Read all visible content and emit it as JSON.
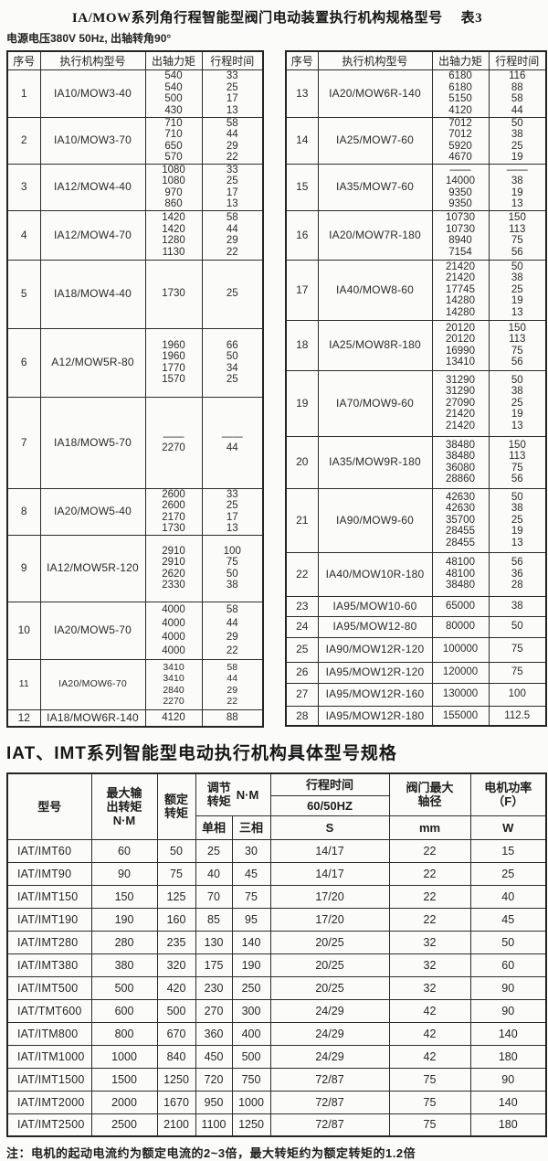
{
  "page": {
    "title": "IA/MOW系列角行程智能型阀门电动装置执行机构规格型号",
    "table_ref": "表3",
    "subtitle": "电源电压380V 50Hz, 出轴转角90°",
    "section2_title": "IAT、IMT系列智能型电动执行机构具体型号规格",
    "note": "注：电机的起动电流约为额定电流的2~3倍，最大转矩约为额定转矩的1.2倍"
  },
  "spec_table": {
    "headers": [
      "序号",
      "执行机构型号",
      "出轴力矩",
      "行程时间"
    ],
    "left_rows": [
      {
        "no": "1",
        "model": "IA10/MOW3-40",
        "torque": "540\n540\n500\n430",
        "time": "33\n25\n17\n13"
      },
      {
        "no": "2",
        "model": "IA10/MOW3-70",
        "torque": "710\n710\n650\n570",
        "time": "58\n44\n29\n22"
      },
      {
        "no": "3",
        "model": "IA12/MOW4-40",
        "torque": "1080\n1080\n970\n860",
        "time": "33\n25\n17\n13"
      },
      {
        "no": "4",
        "model": "IA12/MOW4-70",
        "torque": "1420\n1420\n1280\n1130",
        "time": "58\n44\n29\n22"
      },
      {
        "no": "5",
        "model": "IA18/MOW4-40",
        "torque": "1730",
        "time": "25"
      },
      {
        "no": "6",
        "model": "A12/MOW5R-80",
        "torque": "1960\n1960\n1770\n1570",
        "time": "66\n50\n34\n25"
      },
      {
        "no": "7",
        "model": "IA18/MOW5-70",
        "torque": "——\n2270",
        "time": "——\n44"
      },
      {
        "no": "8",
        "model": "IA20/MOW5-40",
        "torque": "2600\n2600\n2170\n1730",
        "time": "33\n25\n17\n13"
      },
      {
        "no": "9",
        "model": "IA12/MOW5R-120",
        "torque": "2910\n2910\n2620\n2330",
        "time": "100\n75\n50\n38"
      },
      {
        "no": "10",
        "model": "IA20/MOW5-70",
        "torque": "4000\n4000\n4000\n4000",
        "time": "58\n44\n29\n22"
      },
      {
        "no": "11",
        "model": "IA20/MOW6-70",
        "torque": "3410\n3410\n2840\n2270",
        "time": "58\n44\n29\n22"
      },
      {
        "no": "12",
        "model": "IA18/MOW6R-140",
        "torque": "4120",
        "time": "88"
      }
    ],
    "right_rows": [
      {
        "no": "13",
        "model": "IA20/MOW6R-140",
        "torque": "6180\n6180\n5150\n4120",
        "time": "116\n88\n58\n44"
      },
      {
        "no": "14",
        "model": "IA25/MOW7-60",
        "torque": "7012\n7012\n5920\n4670",
        "time": "50\n38\n25\n19"
      },
      {
        "no": "15",
        "model": "IA35/MOW7-60",
        "torque": "——\n14000\n9350\n9350",
        "time": "——\n38\n19\n13"
      },
      {
        "no": "16",
        "model": "IA20/MOW7R-180",
        "torque": "10730\n10730\n8940\n7154",
        "time": "150\n113\n75\n56"
      },
      {
        "no": "17",
        "model": "IA40/MOW8-60",
        "torque": "21420\n21420\n17745\n14280\n14280",
        "time": "50\n38\n25\n19\n13"
      },
      {
        "no": "18",
        "model": "IA25/MOW8R-180",
        "torque": "20120\n20120\n16990\n13410",
        "time": "150\n113\n75\n56"
      },
      {
        "no": "19",
        "model": "IA70/MOW9-60",
        "torque": "31290\n31290\n27090\n21420\n21420",
        "time": "50\n38\n25\n19\n13"
      },
      {
        "no": "20",
        "model": "IA35/MOW9R-180",
        "torque": "38480\n38480\n36080\n28860",
        "time": "150\n113\n75\n56"
      },
      {
        "no": "21",
        "model": "IA90/MOW9-60",
        "torque": "42630\n42630\n35700\n28455\n28455",
        "time": "50\n38\n25\n19\n13"
      },
      {
        "no": "22",
        "model": "IA40/MOW10R-180",
        "torque": "48100\n48100\n38480",
        "time": "56\n36\n28"
      },
      {
        "no": "23",
        "model": "IA95/MOW10-60",
        "torque": "65000",
        "time": "38"
      },
      {
        "no": "24",
        "model": "IA95/MOW12-80",
        "torque": "80000",
        "time": "50"
      },
      {
        "no": "25",
        "model": "IA90/MOW12R-120",
        "torque": "100000",
        "time": "75"
      },
      {
        "no": "26",
        "model": "IA95/MOW12R-120",
        "torque": "120000",
        "time": "75"
      },
      {
        "no": "27",
        "model": "IA95/MOW12R-160",
        "torque": "130000",
        "time": "100"
      },
      {
        "no": "28",
        "model": "IA95/MOW12R-180",
        "torque": "155000",
        "time": "112.5"
      }
    ]
  },
  "iat_table": {
    "header": {
      "model": "型号",
      "max_torque": "最大输\n出转矩\nN·M",
      "rated_torque": "额定\n转矩",
      "adjust_torque": "调节\n转矩",
      "adjust_unit": "N·M",
      "travel_time": "行程时间",
      "travel_freq": "60/50HZ",
      "valve_shaft": "阀门最大\n轴径",
      "motor_power": "电机功率\n（F）",
      "single_phase": "单相",
      "three_phase": "三相",
      "unit_s": "S",
      "unit_mm": "mm",
      "unit_w": "W"
    },
    "rows": [
      {
        "model": "IAT/IMT60",
        "max": "60",
        "rated": "50",
        "single": "25",
        "three": "30",
        "time": "14/17",
        "shaft": "22",
        "power": "15"
      },
      {
        "model": "IAT/IMT90",
        "max": "90",
        "rated": "75",
        "single": "40",
        "three": "45",
        "time": "14/17",
        "shaft": "22",
        "power": "25"
      },
      {
        "model": "IAT/IMT150",
        "max": "150",
        "rated": "125",
        "single": "70",
        "three": "75",
        "time": "17/20",
        "shaft": "22",
        "power": "40"
      },
      {
        "model": "IAT/IMT190",
        "max": "190",
        "rated": "160",
        "single": "85",
        "three": "95",
        "time": "17/20",
        "shaft": "22",
        "power": "45"
      },
      {
        "model": "IAT/IMT280",
        "max": "280",
        "rated": "235",
        "single": "130",
        "three": "140",
        "time": "20/25",
        "shaft": "32",
        "power": "50"
      },
      {
        "model": "IAT/IMT380",
        "max": "380",
        "rated": "320",
        "single": "175",
        "three": "190",
        "time": "20/25",
        "shaft": "32",
        "power": "60"
      },
      {
        "model": "IAT/IMT500",
        "max": "500",
        "rated": "420",
        "single": "230",
        "three": "250",
        "time": "20/25",
        "shaft": "32",
        "power": "90"
      },
      {
        "model": "IAT/TMT600",
        "max": "600",
        "rated": "500",
        "single": "270",
        "three": "300",
        "time": "24/29",
        "shaft": "42",
        "power": "90"
      },
      {
        "model": "IAT/ITM800",
        "max": "800",
        "rated": "670",
        "single": "360",
        "three": "400",
        "time": "24/29",
        "shaft": "42",
        "power": "140"
      },
      {
        "model": "IAT/ITM1000",
        "max": "1000",
        "rated": "840",
        "single": "450",
        "three": "500",
        "time": "24/29",
        "shaft": "42",
        "power": "180"
      },
      {
        "model": "IAT/IMT1500",
        "max": "1500",
        "rated": "1250",
        "single": "720",
        "three": "750",
        "time": "72/87",
        "shaft": "75",
        "power": "90"
      },
      {
        "model": "IAT/IMT2000",
        "max": "2000",
        "rated": "1670",
        "single": "950",
        "three": "1000",
        "time": "72/87",
        "shaft": "75",
        "power": "140"
      },
      {
        "model": "IAT/IMT2500",
        "max": "2500",
        "rated": "2100",
        "single": "1100",
        "three": "1250",
        "time": "72/87",
        "shaft": "75",
        "power": "180"
      }
    ]
  }
}
